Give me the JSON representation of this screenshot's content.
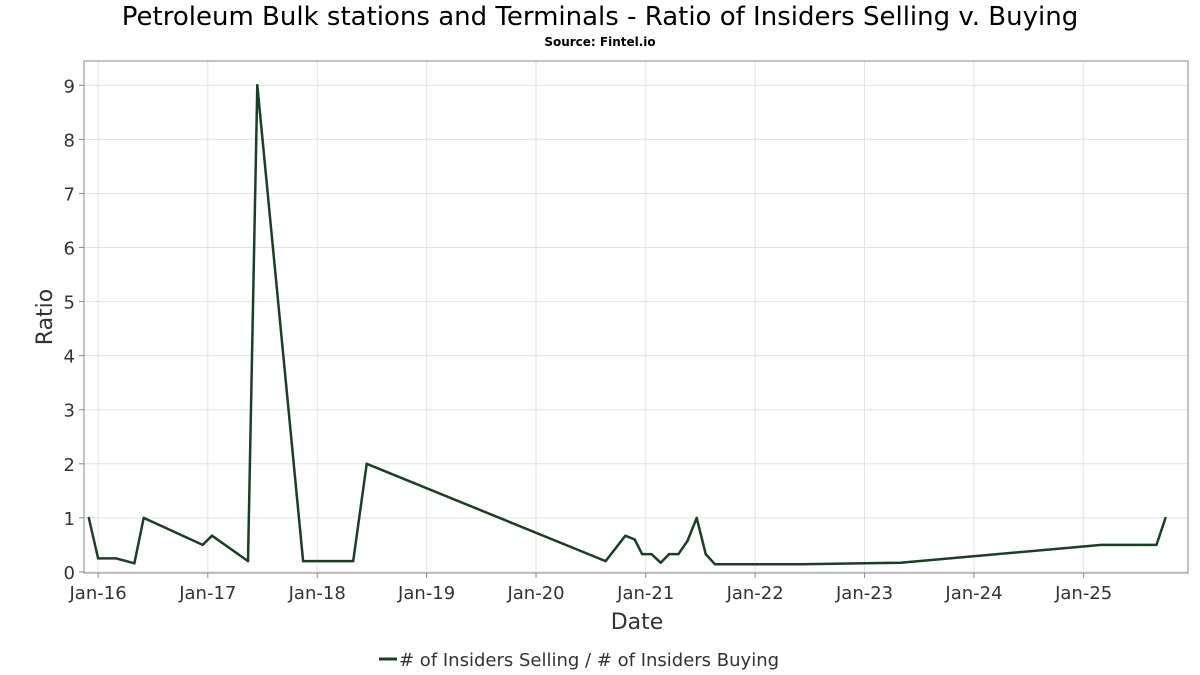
{
  "header": {
    "title": "Petroleum Bulk stations and Terminals - Ratio of Insiders Selling v. Buying",
    "subtitle": "Source: Fintel.io"
  },
  "chart_data": {
    "type": "line",
    "title": "Petroleum Bulk stations and Terminals - Ratio of Insiders Selling v. Buying",
    "subtitle": "Source: Fintel.io",
    "xlabel": "Date",
    "ylabel": "Ratio",
    "x_tick_labels": [
      "Jan-16",
      "Jan-17",
      "Jan-18",
      "Jan-19",
      "Jan-20",
      "Jan-21",
      "Jan-22",
      "Jan-23",
      "Jan-24",
      "Jan-25"
    ],
    "y_ticks": [
      0,
      1,
      2,
      3,
      4,
      5,
      6,
      7,
      8,
      9
    ],
    "ylim": [
      -0.02,
      9.45
    ],
    "xlim": [
      "2015-11-15",
      "2025-12-15"
    ],
    "grid": true,
    "legend_position": "bottom-center",
    "series": [
      {
        "name": "# of Insiders Selling / # of Insiders Buying",
        "color": "#1a4023",
        "points": [
          [
            "2015-12-01",
            1.0
          ],
          [
            "2016-01-01",
            0.25
          ],
          [
            "2016-03-01",
            0.25
          ],
          [
            "2016-05-01",
            0.16
          ],
          [
            "2016-06-01",
            1.0
          ],
          [
            "2016-12-15",
            0.5
          ],
          [
            "2017-01-15",
            0.67
          ],
          [
            "2017-05-15",
            0.2
          ],
          [
            "2017-06-15",
            9.0
          ],
          [
            "2017-11-15",
            0.2
          ],
          [
            "2018-02-01",
            0.2
          ],
          [
            "2018-05-01",
            0.2
          ],
          [
            "2018-06-15",
            2.0
          ],
          [
            "2020-08-20",
            0.2
          ],
          [
            "2020-10-25",
            0.67
          ],
          [
            "2020-11-25",
            0.6
          ],
          [
            "2020-12-20",
            0.33
          ],
          [
            "2021-01-20",
            0.33
          ],
          [
            "2021-02-20",
            0.17
          ],
          [
            "2021-03-20",
            0.33
          ],
          [
            "2021-04-20",
            0.33
          ],
          [
            "2021-05-20",
            0.57
          ],
          [
            "2021-06-20",
            1.0
          ],
          [
            "2021-07-20",
            0.33
          ],
          [
            "2021-08-20",
            0.14
          ],
          [
            "2022-06-01",
            0.14
          ],
          [
            "2023-05-01",
            0.17
          ],
          [
            "2025-03-01",
            0.5
          ],
          [
            "2025-07-01",
            0.5
          ],
          [
            "2025-09-01",
            0.5
          ],
          [
            "2025-10-01",
            1.0
          ]
        ]
      }
    ]
  }
}
